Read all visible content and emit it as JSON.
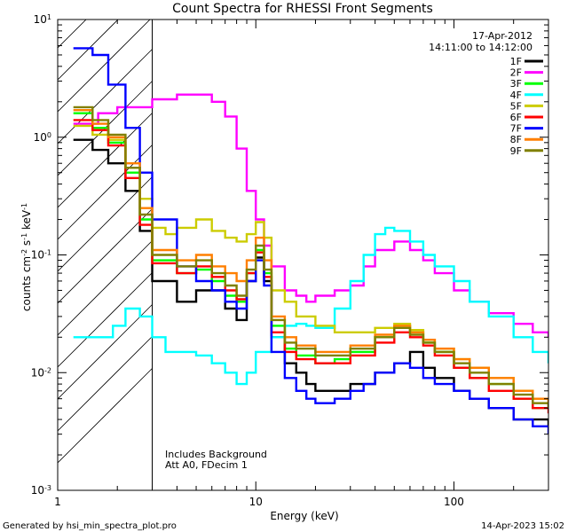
{
  "chart_data": {
    "type": "line",
    "title": "Count Spectra for RHESSI Front Segments",
    "xlabel": "Energy (keV)",
    "ylabel": {
      "base": "counts cm",
      "exp1": "-2",
      "mid": " s",
      "exp2": "-1",
      "unit": " keV",
      "exp3": "-1"
    },
    "x_scale": "log",
    "y_scale": "log",
    "xlim": [
      1,
      300
    ],
    "ylim": [
      0.001,
      10
    ],
    "x_ticks": [
      {
        "value": 1,
        "label": "1"
      },
      {
        "value": 10,
        "label": "10"
      },
      {
        "value": 100,
        "label": "100"
      }
    ],
    "y_ticks": [
      {
        "value": 0.001,
        "base": "10",
        "exp": "-3"
      },
      {
        "value": 0.01,
        "base": "10",
        "exp": "-2"
      },
      {
        "value": 0.1,
        "base": "10",
        "exp": "-1"
      },
      {
        "value": 1,
        "base": "10",
        "exp": "0"
      },
      {
        "value": 10,
        "base": "10",
        "exp": "1"
      }
    ],
    "hatched_region_x": [
      1,
      3
    ],
    "legend_header": {
      "date": "17-Apr-2012",
      "time_range": "14:11:00 to 14:12:00"
    },
    "annotations": [
      "Includes Background",
      "Att A0, FDecim 1"
    ],
    "series": [
      {
        "name": "1F",
        "color": "#000000",
        "points": [
          [
            1.2,
            0.95
          ],
          [
            1.5,
            0.78
          ],
          [
            1.8,
            0.6
          ],
          [
            2.2,
            0.35
          ],
          [
            2.6,
            0.16
          ],
          [
            3,
            0.06
          ],
          [
            4,
            0.04
          ],
          [
            5,
            0.05
          ],
          [
            6,
            0.05
          ],
          [
            7,
            0.035
          ],
          [
            8,
            0.028
          ],
          [
            9,
            0.06
          ],
          [
            10,
            0.095
          ],
          [
            11,
            0.06
          ],
          [
            12,
            0.02
          ],
          [
            14,
            0.012
          ],
          [
            16,
            0.01
          ],
          [
            18,
            0.008
          ],
          [
            20,
            0.007
          ],
          [
            25,
            0.007
          ],
          [
            30,
            0.008
          ],
          [
            40,
            0.01
          ],
          [
            50,
            0.012
          ],
          [
            60,
            0.015
          ],
          [
            70,
            0.011
          ],
          [
            80,
            0.009
          ],
          [
            100,
            0.007
          ],
          [
            120,
            0.006
          ],
          [
            150,
            0.005
          ],
          [
            200,
            0.004
          ],
          [
            250,
            0.004
          ],
          [
            300,
            0.0035
          ]
        ]
      },
      {
        "name": "2F",
        "color": "#ff00ff",
        "points": [
          [
            1.2,
            1.3
          ],
          [
            1.6,
            1.6
          ],
          [
            2,
            1.8
          ],
          [
            3,
            2.1
          ],
          [
            4,
            2.3
          ],
          [
            5,
            2.3
          ],
          [
            6,
            2.0
          ],
          [
            7,
            1.5
          ],
          [
            8,
            0.8
          ],
          [
            9,
            0.35
          ],
          [
            10,
            0.2
          ],
          [
            11,
            0.12
          ],
          [
            12,
            0.08
          ],
          [
            14,
            0.05
          ],
          [
            16,
            0.045
          ],
          [
            18,
            0.04
          ],
          [
            20,
            0.045
          ],
          [
            25,
            0.05
          ],
          [
            30,
            0.055
          ],
          [
            35,
            0.08
          ],
          [
            40,
            0.11
          ],
          [
            50,
            0.13
          ],
          [
            60,
            0.11
          ],
          [
            70,
            0.09
          ],
          [
            80,
            0.07
          ],
          [
            100,
            0.05
          ],
          [
            120,
            0.04
          ],
          [
            150,
            0.032
          ],
          [
            200,
            0.026
          ],
          [
            250,
            0.022
          ],
          [
            300,
            0.02
          ]
        ]
      },
      {
        "name": "3F",
        "color": "#00ff00",
        "points": [
          [
            1.2,
            1.6
          ],
          [
            1.5,
            1.2
          ],
          [
            1.8,
            0.9
          ],
          [
            2.2,
            0.5
          ],
          [
            2.6,
            0.2
          ],
          [
            3,
            0.09
          ],
          [
            4,
            0.07
          ],
          [
            5,
            0.075
          ],
          [
            6,
            0.06
          ],
          [
            7,
            0.045
          ],
          [
            8,
            0.04
          ],
          [
            9,
            0.07
          ],
          [
            10,
            0.11
          ],
          [
            11,
            0.07
          ],
          [
            12,
            0.025
          ],
          [
            14,
            0.016
          ],
          [
            16,
            0.014
          ],
          [
            20,
            0.012
          ],
          [
            25,
            0.013
          ],
          [
            30,
            0.015
          ],
          [
            40,
            0.02
          ],
          [
            50,
            0.025
          ],
          [
            60,
            0.022
          ],
          [
            70,
            0.018
          ],
          [
            80,
            0.015
          ],
          [
            100,
            0.011
          ],
          [
            120,
            0.009
          ],
          [
            150,
            0.008
          ],
          [
            200,
            0.006
          ],
          [
            250,
            0.005
          ],
          [
            300,
            0.005
          ]
        ]
      },
      {
        "name": "4F",
        "color": "#00ffff",
        "points": [
          [
            1.2,
            0.02
          ],
          [
            1.5,
            0.02
          ],
          [
            1.9,
            0.025
          ],
          [
            2.2,
            0.035
          ],
          [
            2.6,
            0.03
          ],
          [
            3,
            0.02
          ],
          [
            3.5,
            0.015
          ],
          [
            4,
            0.015
          ],
          [
            5,
            0.014
          ],
          [
            6,
            0.012
          ],
          [
            7,
            0.01
          ],
          [
            8,
            0.008
          ],
          [
            9,
            0.01
          ],
          [
            10,
            0.015
          ],
          [
            12,
            0.02
          ],
          [
            14,
            0.025
          ],
          [
            16,
            0.026
          ],
          [
            18,
            0.025
          ],
          [
            20,
            0.024
          ],
          [
            25,
            0.035
          ],
          [
            30,
            0.06
          ],
          [
            35,
            0.1
          ],
          [
            40,
            0.15
          ],
          [
            45,
            0.17
          ],
          [
            50,
            0.16
          ],
          [
            60,
            0.13
          ],
          [
            70,
            0.1
          ],
          [
            80,
            0.08
          ],
          [
            100,
            0.06
          ],
          [
            120,
            0.04
          ],
          [
            150,
            0.03
          ],
          [
            200,
            0.02
          ],
          [
            250,
            0.015
          ],
          [
            300,
            0.012
          ]
        ]
      },
      {
        "name": "5F",
        "color": "#cccc00",
        "points": [
          [
            1.2,
            1.25
          ],
          [
            1.5,
            1.05
          ],
          [
            1.8,
            0.95
          ],
          [
            2.2,
            0.55
          ],
          [
            2.6,
            0.3
          ],
          [
            3,
            0.17
          ],
          [
            3.5,
            0.15
          ],
          [
            4,
            0.17
          ],
          [
            5,
            0.2
          ],
          [
            6,
            0.16
          ],
          [
            7,
            0.14
          ],
          [
            8,
            0.13
          ],
          [
            9,
            0.15
          ],
          [
            10,
            0.19
          ],
          [
            11,
            0.14
          ],
          [
            12,
            0.05
          ],
          [
            14,
            0.04
          ],
          [
            16,
            0.03
          ],
          [
            20,
            0.025
          ],
          [
            25,
            0.022
          ],
          [
            30,
            0.022
          ],
          [
            40,
            0.024
          ],
          [
            50,
            0.026
          ],
          [
            60,
            0.023
          ],
          [
            70,
            0.019
          ],
          [
            80,
            0.016
          ],
          [
            100,
            0.013
          ],
          [
            120,
            0.011
          ],
          [
            150,
            0.009
          ],
          [
            200,
            0.007
          ],
          [
            250,
            0.006
          ],
          [
            300,
            0.005
          ]
        ]
      },
      {
        "name": "6F",
        "color": "#ff0000",
        "points": [
          [
            1.2,
            1.4
          ],
          [
            1.5,
            1.15
          ],
          [
            1.8,
            0.85
          ],
          [
            2.2,
            0.45
          ],
          [
            2.6,
            0.18
          ],
          [
            3,
            0.085
          ],
          [
            4,
            0.07
          ],
          [
            5,
            0.08
          ],
          [
            6,
            0.065
          ],
          [
            7,
            0.05
          ],
          [
            8,
            0.042
          ],
          [
            9,
            0.07
          ],
          [
            10,
            0.105
          ],
          [
            11,
            0.065
          ],
          [
            12,
            0.022
          ],
          [
            14,
            0.015
          ],
          [
            16,
            0.013
          ],
          [
            20,
            0.012
          ],
          [
            25,
            0.012
          ],
          [
            30,
            0.014
          ],
          [
            40,
            0.018
          ],
          [
            50,
            0.022
          ],
          [
            60,
            0.02
          ],
          [
            70,
            0.017
          ],
          [
            80,
            0.014
          ],
          [
            100,
            0.011
          ],
          [
            120,
            0.009
          ],
          [
            150,
            0.007
          ],
          [
            200,
            0.006
          ],
          [
            250,
            0.005
          ],
          [
            300,
            0.0045
          ]
        ]
      },
      {
        "name": "7F",
        "color": "#0000ff",
        "points": [
          [
            1.2,
            5.7
          ],
          [
            1.5,
            5.0
          ],
          [
            1.8,
            2.8
          ],
          [
            2.2,
            1.2
          ],
          [
            2.6,
            0.5
          ],
          [
            3,
            0.2
          ],
          [
            4,
            0.08
          ],
          [
            5,
            0.06
          ],
          [
            6,
            0.05
          ],
          [
            7,
            0.04
          ],
          [
            8,
            0.035
          ],
          [
            9,
            0.06
          ],
          [
            10,
            0.09
          ],
          [
            11,
            0.055
          ],
          [
            12,
            0.015
          ],
          [
            14,
            0.009
          ],
          [
            16,
            0.007
          ],
          [
            18,
            0.006
          ],
          [
            20,
            0.0055
          ],
          [
            25,
            0.006
          ],
          [
            30,
            0.007
          ],
          [
            35,
            0.008
          ],
          [
            40,
            0.01
          ],
          [
            50,
            0.012
          ],
          [
            60,
            0.011
          ],
          [
            70,
            0.009
          ],
          [
            80,
            0.008
          ],
          [
            100,
            0.007
          ],
          [
            120,
            0.006
          ],
          [
            150,
            0.005
          ],
          [
            200,
            0.004
          ],
          [
            250,
            0.0035
          ],
          [
            300,
            0.003
          ]
        ]
      },
      {
        "name": "8F",
        "color": "#ff7f00",
        "points": [
          [
            1.2,
            1.7
          ],
          [
            1.5,
            1.3
          ],
          [
            1.8,
            1.0
          ],
          [
            2.2,
            0.6
          ],
          [
            2.6,
            0.25
          ],
          [
            3,
            0.11
          ],
          [
            4,
            0.09
          ],
          [
            5,
            0.1
          ],
          [
            6,
            0.08
          ],
          [
            7,
            0.07
          ],
          [
            8,
            0.06
          ],
          [
            9,
            0.09
          ],
          [
            10,
            0.14
          ],
          [
            11,
            0.09
          ],
          [
            12,
            0.03
          ],
          [
            14,
            0.02
          ],
          [
            16,
            0.017
          ],
          [
            20,
            0.015
          ],
          [
            25,
            0.015
          ],
          [
            30,
            0.017
          ],
          [
            40,
            0.021
          ],
          [
            50,
            0.025
          ],
          [
            60,
            0.022
          ],
          [
            70,
            0.019
          ],
          [
            80,
            0.016
          ],
          [
            100,
            0.013
          ],
          [
            120,
            0.011
          ],
          [
            150,
            0.009
          ],
          [
            200,
            0.007
          ],
          [
            250,
            0.006
          ],
          [
            300,
            0.005
          ]
        ]
      },
      {
        "name": "9F",
        "color": "#808000",
        "points": [
          [
            1.2,
            1.8
          ],
          [
            1.5,
            1.4
          ],
          [
            1.8,
            1.05
          ],
          [
            2.2,
            0.55
          ],
          [
            2.6,
            0.22
          ],
          [
            3,
            0.1
          ],
          [
            4,
            0.08
          ],
          [
            5,
            0.09
          ],
          [
            6,
            0.07
          ],
          [
            7,
            0.055
          ],
          [
            8,
            0.045
          ],
          [
            9,
            0.075
          ],
          [
            10,
            0.12
          ],
          [
            11,
            0.075
          ],
          [
            12,
            0.028
          ],
          [
            14,
            0.018
          ],
          [
            16,
            0.016
          ],
          [
            20,
            0.014
          ],
          [
            25,
            0.014
          ],
          [
            30,
            0.016
          ],
          [
            40,
            0.02
          ],
          [
            50,
            0.024
          ],
          [
            60,
            0.021
          ],
          [
            70,
            0.018
          ],
          [
            80,
            0.015
          ],
          [
            100,
            0.012
          ],
          [
            120,
            0.01
          ],
          [
            150,
            0.008
          ],
          [
            200,
            0.0065
          ],
          [
            250,
            0.0055
          ],
          [
            300,
            0.005
          ]
        ]
      }
    ]
  },
  "footer": {
    "generated_by": "Generated by hsi_min_spectra_plot.pro",
    "timestamp": "14-Apr-2023 15:02"
  }
}
